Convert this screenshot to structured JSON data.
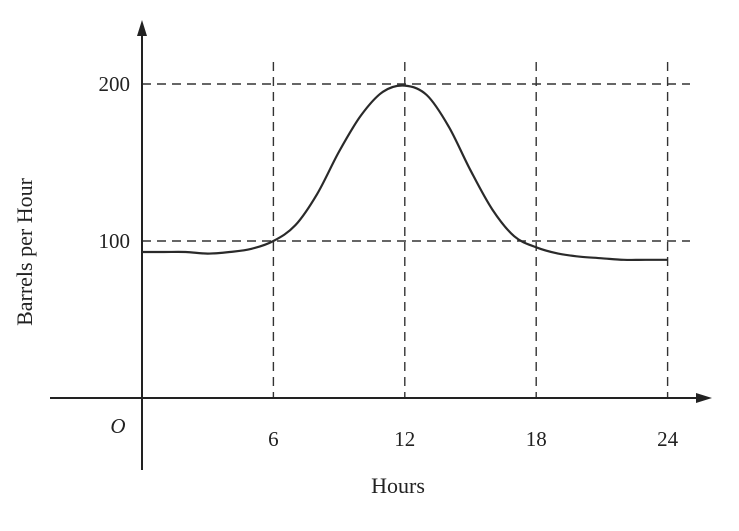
{
  "chart_data": {
    "type": "line",
    "title": "",
    "xlabel": "Hours",
    "ylabel": "Barrels per Hour",
    "origin_label": "O",
    "xlim": [
      0,
      24
    ],
    "ylim": [
      0,
      200
    ],
    "x_ticks": [
      6,
      12,
      18,
      24
    ],
    "y_ticks": [
      100,
      200
    ],
    "grid": false,
    "legend": "none",
    "reference_lines": {
      "vertical": [
        6,
        12,
        18,
        24
      ],
      "horizontal": [
        100,
        200
      ]
    },
    "series": [
      {
        "x": [
          0,
          1,
          2,
          3,
          4,
          5,
          6,
          7,
          8,
          9,
          10,
          11,
          12,
          13,
          14,
          15,
          16,
          17,
          18,
          19,
          20,
          21,
          22,
          23,
          24
        ],
        "y": [
          93,
          93,
          93,
          92,
          93,
          95,
          100,
          110,
          130,
          157,
          180,
          195,
          199,
          193,
          173,
          145,
          120,
          103,
          96,
          92,
          90,
          89,
          88,
          88,
          88
        ]
      }
    ]
  },
  "colors": {
    "ink": "#222222",
    "background": "#ffffff"
  }
}
